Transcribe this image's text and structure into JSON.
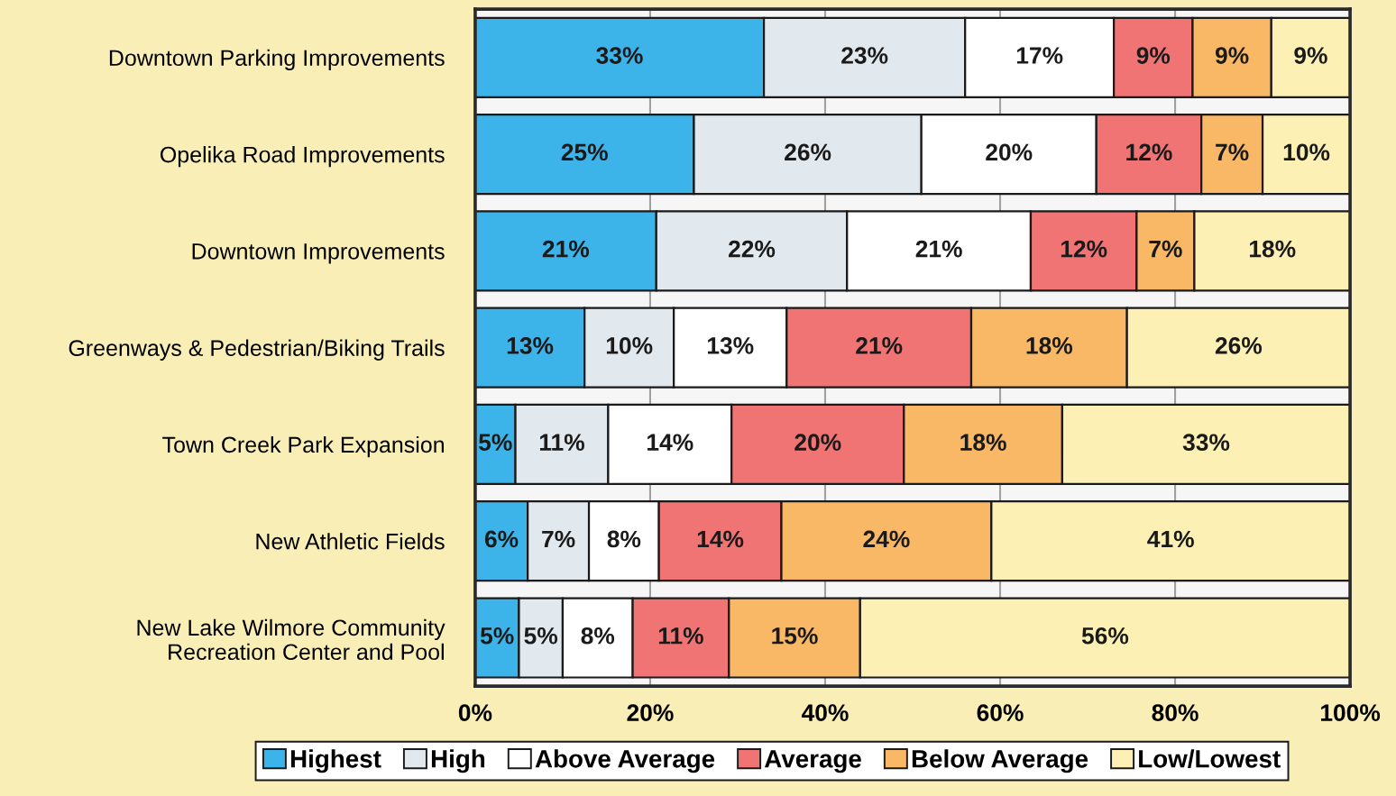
{
  "chart_data": {
    "type": "bar",
    "orientation": "horizontal",
    "stacked": true,
    "categories": [
      "Downtown Parking Improvements",
      "Opelika Road Improvements",
      "Downtown Improvements",
      "Greenways & Pedestrian/Biking Trails",
      "Town Creek Park Expansion",
      "New Athletic Fields",
      "New Lake Wilmore Community\nRecreation Center and Pool"
    ],
    "series": [
      {
        "name": "Highest",
        "color": "#3db4e9",
        "values": [
          33,
          25,
          20.7,
          12.5,
          4.6,
          6,
          5
        ],
        "value_labels": [
          "33%",
          "25%",
          "21%",
          "13%",
          "5%",
          "6%",
          "5%"
        ]
      },
      {
        "name": "High",
        "color": "#e2e9ee",
        "values": [
          23,
          26,
          21.8,
          10.2,
          10.6,
          7,
          5
        ],
        "value_labels": [
          "23%",
          "26%",
          "22%",
          "10%",
          "11%",
          "7%",
          "5%"
        ]
      },
      {
        "name": "Above Average",
        "color": "#ffffff",
        "values": [
          17,
          20,
          21.0,
          12.9,
          14.1,
          8,
          8
        ],
        "value_labels": [
          "17%",
          "20%",
          "21%",
          "13%",
          "14%",
          "8%",
          "8%"
        ]
      },
      {
        "name": "Average",
        "color": "#f07474",
        "values": [
          9,
          12,
          12.1,
          21.1,
          19.7,
          14,
          11
        ],
        "value_labels": [
          "9%",
          "12%",
          "12%",
          "21%",
          "20%",
          "14%",
          "11%"
        ]
      },
      {
        "name": "Below Average",
        "color": "#f8b865",
        "values": [
          9,
          7,
          6.6,
          17.8,
          18.1,
          24,
          15
        ],
        "value_labels": [
          "9%",
          "7%",
          "7%",
          "18%",
          "18%",
          "24%",
          "15%"
        ]
      },
      {
        "name": "Low/Lowest",
        "color": "#fcf0b4",
        "values": [
          9,
          10,
          17.8,
          25.5,
          32.9,
          41,
          56
        ],
        "value_labels": [
          "9%",
          "10%",
          "18%",
          "26%",
          "33%",
          "41%",
          "56%"
        ]
      }
    ],
    "xlim": [
      0,
      100
    ],
    "xticks": [
      {
        "value": 0,
        "label": "0%"
      },
      {
        "value": 20,
        "label": "20%"
      },
      {
        "value": 40,
        "label": "40%"
      },
      {
        "value": 60,
        "label": "60%"
      },
      {
        "value": 80,
        "label": "80%"
      },
      {
        "value": 100,
        "label": "100%"
      }
    ],
    "grid": "x",
    "legend": "bottom"
  }
}
